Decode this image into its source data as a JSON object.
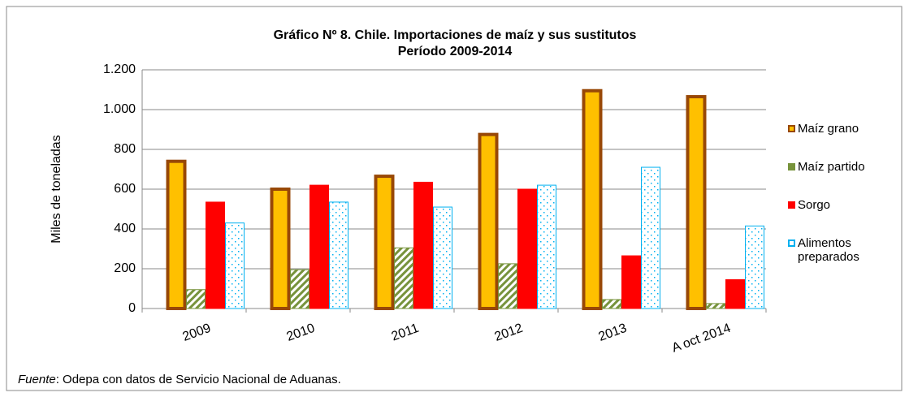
{
  "chart_data": {
    "type": "bar",
    "title": [
      "Gráfico Nº 8. Chile. Importaciones de maíz y sus sustitutos",
      "Período 2009-2014"
    ],
    "y_label": "Miles de  toneladas",
    "categories": [
      "2009",
      "2010",
      "2011",
      "2012",
      "2013",
      "A oct 2014"
    ],
    "series": [
      {
        "name": "Maíz grano",
        "color": "#ffc000",
        "edge_color": "#984807",
        "pattern": "solid",
        "values": [
          740,
          600,
          665,
          875,
          1095,
          1065
        ]
      },
      {
        "name": "Maíz partido",
        "color": "#77933c",
        "edge_color": "#77933c",
        "pattern": "hatch",
        "values": [
          95,
          195,
          305,
          225,
          45,
          25
        ]
      },
      {
        "name": "Sorgo",
        "color": "#ff0000",
        "edge_color": "#ff0000",
        "pattern": "solid",
        "values": [
          535,
          620,
          635,
          600,
          265,
          145
        ]
      },
      {
        "name": "Alimentos preparados",
        "color": "#00b0f0",
        "edge_color": "#00b0f0",
        "pattern": "dots",
        "values": [
          430,
          535,
          510,
          620,
          710,
          415
        ]
      }
    ],
    "ylim": [
      0,
      1200
    ],
    "yticks": [
      0,
      200,
      400,
      600,
      800,
      {
        "value": 1000,
        "label": "1.000"
      },
      {
        "value": 1200,
        "label": "1.200"
      }
    ],
    "grid": true,
    "legend": "right",
    "source_label": "Fuente",
    "source_text": ": Odepa con datos de Servicio Nacional de Aduanas."
  }
}
